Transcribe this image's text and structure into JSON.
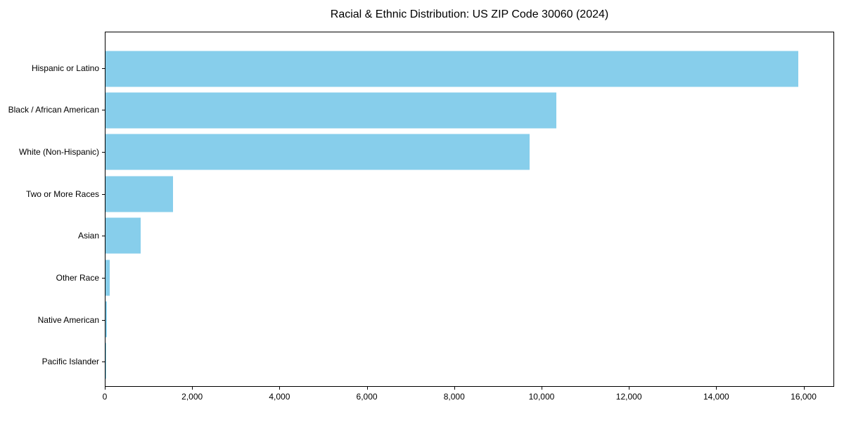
{
  "chart_data": {
    "type": "bar",
    "orientation": "horizontal",
    "title": "Racial & Ethnic Distribution: US ZIP Code 30060 (2024)",
    "categories": [
      "Hispanic or Latino",
      "Black / African American",
      "White (Non-Hispanic)",
      "Two or More Races",
      "Asian",
      "Other Race",
      "Native American",
      "Pacific Islander"
    ],
    "values": [
      15900,
      10340,
      9730,
      1550,
      800,
      100,
      30,
      10
    ],
    "xlabel": "",
    "ylabel": "",
    "xlim": [
      0,
      16700
    ],
    "xticks": [
      0,
      2000,
      4000,
      6000,
      8000,
      10000,
      12000,
      14000,
      16000
    ],
    "xtick_labels": [
      "0",
      "2,000",
      "4,000",
      "6,000",
      "8,000",
      "10,000",
      "12,000",
      "14,000",
      "16,000"
    ],
    "grid": false,
    "legend_position": "none",
    "bar_color": "#87CEEB",
    "axis_color": "#000000",
    "background_color": "#ffffff"
  }
}
